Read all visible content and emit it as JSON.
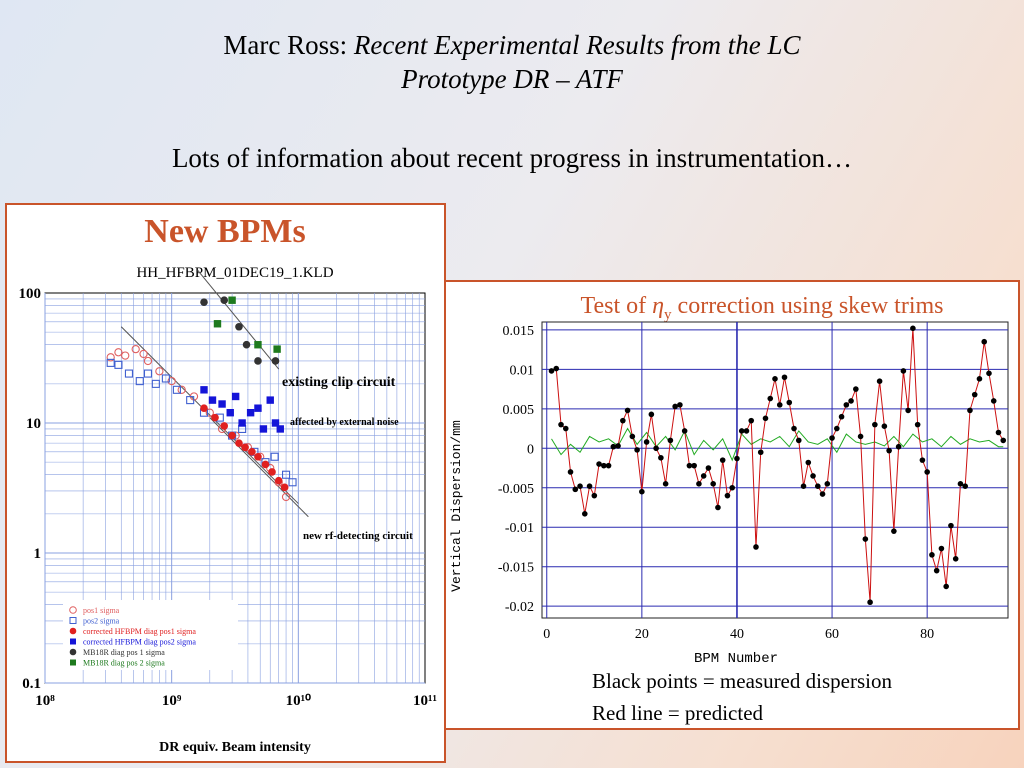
{
  "slide": {
    "title_prefix": "Marc Ross: ",
    "title_italic": "Recent Experimental Results from the LC",
    "title_line2": "Prototype DR – ATF",
    "subtitle": "Lots of information about recent progress in instrumentation…"
  },
  "colors": {
    "accent": "#c9542a",
    "red": "#e02020",
    "blue": "#1414d8",
    "green": "#1e7a1e",
    "dark": "#333333",
    "grid": "#8aa0e0",
    "curve_green": "#22aa22"
  },
  "chart_data": [
    {
      "type": "scatter",
      "heading": "New BPMs",
      "title": "HH_HFBPM_01DEC19_1.KLD",
      "xlabel": "DR equiv. Beam intensity",
      "ylabel": "",
      "x_scale": "log",
      "y_scale": "log",
      "xlim": [
        100000000.0,
        100000000000.0
      ],
      "ylim": [
        0.1,
        100
      ],
      "x_tick_labels": [
        "10⁸",
        "10⁹",
        "10¹⁰",
        "10¹¹"
      ],
      "y_tick_labels": [
        "100",
        "10",
        "1",
        "0.1"
      ],
      "annotations": [
        "existing clip circuit",
        "affected by external noise",
        "new rf-detecting circuit"
      ],
      "legend_position": "bottom-left",
      "series": [
        {
          "name": "pos1 sigma",
          "marker": "open-circle",
          "color": "#e06060",
          "points": [
            [
              330000000.0,
              32
            ],
            [
              380000000.0,
              35
            ],
            [
              430000000.0,
              33
            ],
            [
              520000000.0,
              37
            ],
            [
              600000000.0,
              34
            ],
            [
              650000000.0,
              30
            ],
            [
              800000000.0,
              25
            ],
            [
              1000000000.0,
              21
            ],
            [
              1200000000.0,
              18
            ],
            [
              1500000000.0,
              16
            ],
            [
              2000000000.0,
              12
            ],
            [
              2500000000.0,
              9
            ],
            [
              3200000000.0,
              8
            ],
            [
              4000000000.0,
              6.5
            ],
            [
              5000000000.0,
              5.5
            ],
            [
              6000000000.0,
              4.5
            ],
            [
              7000000000.0,
              3.5
            ],
            [
              8000000000.0,
              2.7
            ]
          ]
        },
        {
          "name": "pos2 sigma",
          "marker": "open-square",
          "color": "#4060d0",
          "points": [
            [
              330000000.0,
              29
            ],
            [
              380000000.0,
              28
            ],
            [
              460000000.0,
              24
            ],
            [
              560000000.0,
              21
            ],
            [
              650000000.0,
              24
            ],
            [
              750000000.0,
              20
            ],
            [
              900000000.0,
              22
            ],
            [
              1100000000.0,
              18
            ],
            [
              1400000000.0,
              15
            ],
            [
              1800000000.0,
              12
            ],
            [
              2400000000.0,
              11
            ],
            [
              3000000000.0,
              8
            ],
            [
              3600000000.0,
              9
            ],
            [
              4500000000.0,
              6
            ],
            [
              5500000000.0,
              5
            ],
            [
              6500000000.0,
              5.5
            ],
            [
              8000000000.0,
              4
            ],
            [
              9000000000.0,
              3.5
            ]
          ]
        },
        {
          "name": "corrected HFBPM diag pos1 sigma",
          "marker": "filled-circle",
          "color": "#e02020",
          "points": [
            [
              1800000000.0,
              13
            ],
            [
              2200000000.0,
              11
            ],
            [
              2600000000.0,
              9.5
            ],
            [
              3000000000.0,
              8
            ],
            [
              3400000000.0,
              7
            ],
            [
              3800000000.0,
              6.5
            ],
            [
              4300000000.0,
              6
            ],
            [
              4800000000.0,
              5.5
            ],
            [
              5500000000.0,
              4.8
            ],
            [
              6200000000.0,
              4.2
            ],
            [
              7000000000.0,
              3.6
            ],
            [
              7800000000.0,
              3.2
            ]
          ]
        },
        {
          "name": "corrected HFBPM diag pos2 sigma",
          "marker": "filled-square",
          "color": "#1414d8",
          "points": [
            [
              1800000000.0,
              18
            ],
            [
              2100000000.0,
              15
            ],
            [
              2500000000.0,
              14
            ],
            [
              2900000000.0,
              12
            ],
            [
              3200000000.0,
              16
            ],
            [
              3600000000.0,
              10
            ],
            [
              4200000000.0,
              12
            ],
            [
              4800000000.0,
              13
            ],
            [
              5300000000.0,
              9
            ],
            [
              6000000000.0,
              15
            ],
            [
              6600000000.0,
              10
            ],
            [
              7200000000.0,
              9
            ]
          ]
        },
        {
          "name": "MB18R diag pos 1 sigma",
          "marker": "filled-circle",
          "color": "#333333",
          "points": [
            [
              1800000000.0,
              85
            ],
            [
              2600000000.0,
              88
            ],
            [
              3400000000.0,
              55
            ],
            [
              3900000000.0,
              40
            ],
            [
              4800000000.0,
              30
            ],
            [
              6600000000.0,
              30
            ]
          ]
        },
        {
          "name": "MB18R diag pos 2 sigma",
          "marker": "filled-square",
          "color": "#1e7a1e",
          "points": [
            [
              2300000000.0,
              58
            ],
            [
              3000000000.0,
              88
            ],
            [
              4800000000.0,
              40
            ],
            [
              6800000000.0,
              37
            ]
          ]
        }
      ]
    },
    {
      "type": "line",
      "title_pre": "Test of ",
      "title_eta": "η",
      "title_sub": "y",
      "title_post": " correction using skew trims",
      "xlabel": "BPM Number",
      "ylabel": "Vertical Dispersion/mm",
      "xlim": [
        -1,
        97
      ],
      "ylim": [
        -0.0215,
        0.016
      ],
      "x_ticks": [
        0,
        20,
        40,
        60,
        80
      ],
      "y_ticks": [
        0.015,
        0.01,
        0.005,
        0,
        -0.005,
        -0.01,
        -0.015,
        -0.02
      ],
      "y_tick_labels": [
        "0.015",
        "0.01",
        "0.005",
        "0",
        "-0.005",
        "-0.01",
        "-0.015",
        "-0.02"
      ],
      "grid": true,
      "captions": [
        "Black points = measured dispersion",
        "Red line = predicted"
      ],
      "series": [
        {
          "name": "measured",
          "color": "#000000",
          "x": [
            1,
            2,
            3,
            4,
            5,
            6,
            7,
            8,
            9,
            10,
            11,
            12,
            13,
            14,
            15,
            16,
            17,
            18,
            19,
            20,
            21,
            22,
            23,
            24,
            25,
            26,
            27,
            28,
            29,
            30,
            31,
            32,
            33,
            34,
            35,
            36,
            37,
            38,
            39,
            40,
            41,
            42,
            43,
            44,
            45,
            46,
            47,
            48,
            49,
            50,
            51,
            52,
            53,
            54,
            55,
            56,
            57,
            58,
            59,
            60,
            61,
            62,
            63,
            64,
            65,
            66,
            67,
            68,
            69,
            70,
            71,
            72,
            73,
            74,
            75,
            76,
            77,
            78,
            79,
            80,
            81,
            82,
            83,
            84,
            85,
            86,
            87,
            88,
            89,
            90,
            91,
            92,
            93,
            94,
            95,
            96
          ],
          "y": [
            0.0098,
            0.0101,
            0.003,
            0.0025,
            -0.003,
            -0.0052,
            -0.0048,
            -0.0083,
            -0.0048,
            -0.006,
            -0.002,
            -0.0022,
            -0.0022,
            0.0002,
            0.0003,
            0.0035,
            0.0048,
            0.0015,
            -0.0002,
            -0.0055,
            0.0008,
            0.0043,
            0,
            -0.0012,
            -0.0045,
            0.001,
            0.0053,
            0.0055,
            0.0022,
            -0.0022,
            -0.0022,
            -0.0045,
            -0.0035,
            -0.0025,
            -0.0045,
            -0.0075,
            -0.0015,
            -0.006,
            -0.005,
            -0.0013,
            0.0022,
            0.0022,
            0.0035,
            -0.0125,
            -0.0005,
            0.0038,
            0.0063,
            0.0088,
            0.0055,
            0.009,
            0.0058,
            0.0025,
            0.001,
            -0.0048,
            -0.0018,
            -0.0035,
            -0.0048,
            -0.0058,
            -0.0045,
            0.0013,
            0.0025,
            0.004,
            0.0055,
            0.006,
            0.0075,
            0.0015,
            -0.0115,
            -0.0195,
            0.003,
            0.0085,
            0.0028,
            -0.0003,
            -0.0105,
            0.0002,
            0.0098,
            0.0048,
            0.0152,
            0.003,
            -0.0015,
            -0.003,
            -0.0135,
            -0.0155,
            -0.0127,
            -0.0175,
            -0.0098,
            -0.014,
            -0.0045,
            -0.0048,
            0.0048,
            0.0068,
            0.0088,
            0.0135,
            0.0095,
            0.006,
            0.002,
            0.001
          ],
          "marker": "dot"
        },
        {
          "name": "predicted",
          "color": "#cc1010",
          "source": "measured",
          "line": true
        },
        {
          "name": "baseline",
          "color": "#22aa22",
          "x": [
            1,
            3,
            5,
            7,
            9,
            11,
            13,
            15,
            17,
            19,
            21,
            23,
            25,
            27,
            29,
            31,
            33,
            35,
            37,
            39,
            41,
            43,
            45,
            47,
            49,
            51,
            53,
            55,
            57,
            59,
            61,
            63,
            65,
            67,
            69,
            71,
            73,
            75,
            77,
            79,
            81,
            83,
            85,
            87,
            89,
            91,
            93,
            95,
            96
          ],
          "y": [
            0.0012,
            -0.0008,
            0.0005,
            -0.0005,
            0.0015,
            0.0008,
            0.0012,
            0.0003,
            0.0025,
            0.0005,
            0.002,
            0.0002,
            0.0015,
            -0.0002,
            0.0022,
            -0.0008,
            0.001,
            -0.0002,
            0.0012,
            -0.0015,
            0.0018,
            0.0005,
            0.0012,
            0.0008,
            0.0015,
            0.0002,
            0.0022,
            0.0008,
            0.0005,
            0.0012,
            -0.0005,
            0.0018,
            0.0008,
            0.0005,
            0.0008,
            0.0003,
            0.0015,
            0.0002,
            0.0018,
            0.0008,
            0.0012,
            0.0002,
            0.0015,
            0.0005,
            0.0012,
            0.0008,
            0.001,
            0.0002,
            0.0002
          ]
        }
      ]
    }
  ],
  "legend_labels": [
    "pos1 sigma",
    "pos2 sigma",
    "corrected HFBPM diag pos1 sigma",
    "corrected HFBPM diag pos2 sigma",
    "MB18R diag pos 1 sigma",
    "MB18R diag pos 2 sigma"
  ]
}
